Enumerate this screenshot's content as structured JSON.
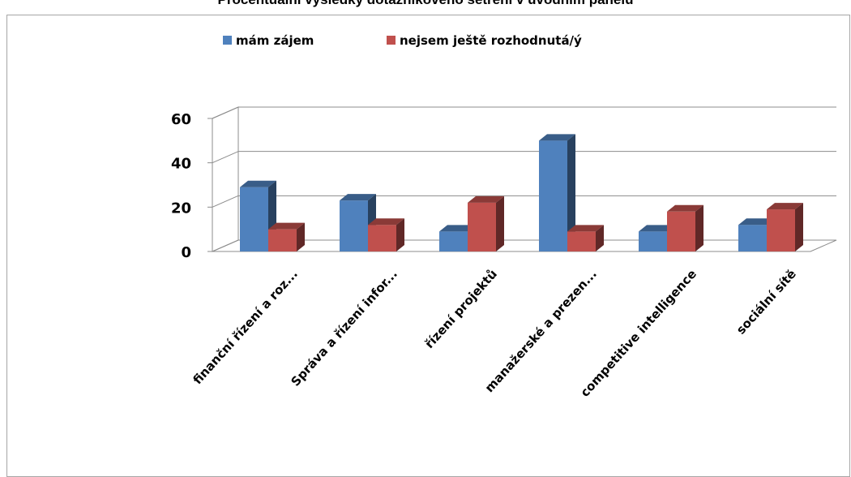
{
  "chart_data": {
    "type": "bar",
    "title": "Procentuální výsledky dotazníkového šetření v úvodním panelu",
    "categories": [
      "finanční řízení a roz...",
      "Správa a řízení infor...",
      "řízení projektů",
      "manažerské a prezen...",
      "competitive intelligence",
      "sociální sítě"
    ],
    "series": [
      {
        "name": "mám zájem",
        "values": [
          29,
          23,
          9,
          50,
          9,
          12
        ],
        "color": "#4f81bd"
      },
      {
        "name": "nejsem ještě rozhodnutá/ý",
        "values": [
          10,
          12,
          22,
          9,
          18,
          19
        ],
        "color": "#c0504d"
      }
    ],
    "yticks": [
      0,
      20,
      40,
      60
    ],
    "ylim": [
      0,
      60
    ],
    "xlabel": "",
    "ylabel": "",
    "grid": true,
    "legend_position": "top"
  }
}
